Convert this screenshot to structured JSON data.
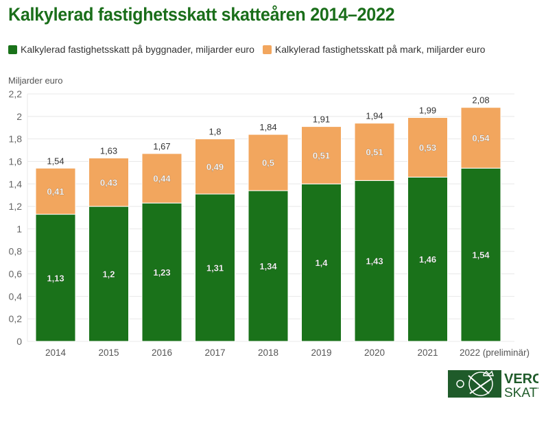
{
  "chart_data": {
    "type": "bar",
    "stacked": true,
    "title": "Kalkylerad fastighetsskatt skatteåren 2014–2022",
    "ylabel": "Miljarder euro",
    "xlabel": "",
    "categories": [
      "2014",
      "2015",
      "2016",
      "2017",
      "2018",
      "2019",
      "2020",
      "2021",
      "2022 (preliminär)"
    ],
    "series": [
      {
        "name": "Kalkylerad fastighetsskatt på byggnader, miljarder euro",
        "color": "#1a721a",
        "values": [
          1.13,
          1.2,
          1.23,
          1.31,
          1.34,
          1.4,
          1.43,
          1.46,
          1.54
        ],
        "labels": [
          "1,13",
          "1,2",
          "1,23",
          "1,31",
          "1,34",
          "1,4",
          "1,43",
          "1,46",
          "1,54"
        ]
      },
      {
        "name": "Kalkylerad fastighetsskatt på mark, miljarder euro",
        "color": "#f2a65e",
        "values": [
          0.41,
          0.43,
          0.44,
          0.49,
          0.5,
          0.51,
          0.51,
          0.53,
          0.54
        ],
        "labels": [
          "0,41",
          "0,43",
          "0,44",
          "0,49",
          "0,5",
          "0,51",
          "0,51",
          "0,53",
          "0,54"
        ]
      }
    ],
    "totals": [
      "1,54",
      "1,63",
      "1,67",
      "1,8",
      "1,84",
      "1,91",
      "1,94",
      "1,99",
      "2,08"
    ],
    "ylim": [
      0,
      2.2
    ],
    "yticks": [
      "0",
      "0,2",
      "0,4",
      "0,6",
      "0,8",
      "1",
      "1,2",
      "1,4",
      "1,6",
      "1,8",
      "2",
      "2,2"
    ],
    "grid": true,
    "legend_position": "top-left"
  },
  "logo": {
    "line1": "VERO",
    "line2": "SKATT",
    "color": "#1f5b2a"
  }
}
